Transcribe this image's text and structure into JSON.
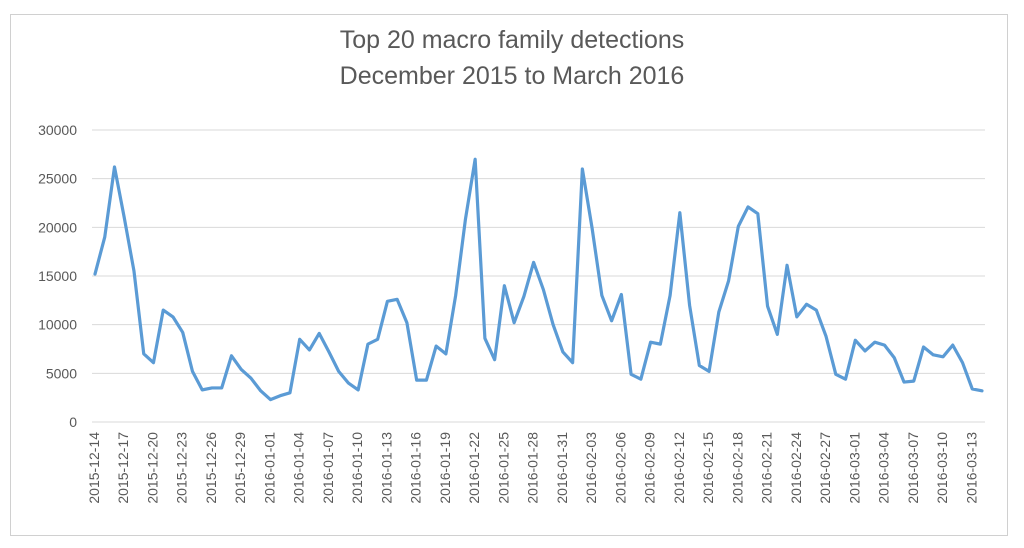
{
  "chart_data": {
    "type": "line",
    "title": "Top 20 macro family detections",
    "subtitle": "December 2015 to March 2016",
    "xlabel": "",
    "ylabel": "",
    "ylim": [
      0,
      30000
    ],
    "yticks": [
      0,
      5000,
      10000,
      15000,
      20000,
      25000,
      30000
    ],
    "grid": true,
    "legend": "none",
    "line_color": "#5b9bd5",
    "x_tick_labels": [
      "2015-12-14",
      "2015-12-17",
      "2015-12-20",
      "2015-12-23",
      "2015-12-26",
      "2015-12-29",
      "2016-01-01",
      "2016-01-04",
      "2016-01-07",
      "2016-01-10",
      "2016-01-13",
      "2016-01-16",
      "2016-01-19",
      "2016-01-22",
      "2016-01-25",
      "2016-01-28",
      "2016-01-31",
      "2016-02-03",
      "2016-02-06",
      "2016-02-09",
      "2016-02-12",
      "2016-02-15",
      "2016-02-18",
      "2016-02-21",
      "2016-02-24",
      "2016-02-27",
      "2016-03-01",
      "2016-03-04",
      "2016-03-07",
      "2016-03-10",
      "2016-03-13"
    ],
    "series": [
      {
        "values": [
          15200,
          19000,
          26200,
          21000,
          15500,
          7000,
          6100,
          11500,
          10800,
          9200,
          5200,
          3300,
          3500,
          3500,
          6800,
          5400,
          4500,
          3200,
          2300,
          2700,
          3000,
          8500,
          7400,
          9100,
          7200,
          5200,
          4000,
          3300,
          8000,
          8500,
          12400,
          12600,
          10200,
          4300,
          4300,
          7800,
          7000,
          13000,
          20800,
          27000,
          8600,
          6400,
          14000,
          10200,
          12900,
          16400,
          13600,
          10000,
          7200,
          6100,
          26000,
          19900,
          13000,
          10400,
          13100,
          4900,
          4400,
          8200,
          8000,
          13000,
          21500,
          12000,
          5800,
          5200,
          11300,
          14500,
          20100,
          22100,
          21400,
          11900,
          9000,
          16100,
          10800,
          12100,
          11500,
          8800,
          4900,
          4400,
          8400,
          7300,
          8200,
          7900,
          6600,
          4100,
          4200,
          7700,
          6900,
          6700,
          7900,
          6100,
          3400,
          3200
        ]
      }
    ]
  }
}
